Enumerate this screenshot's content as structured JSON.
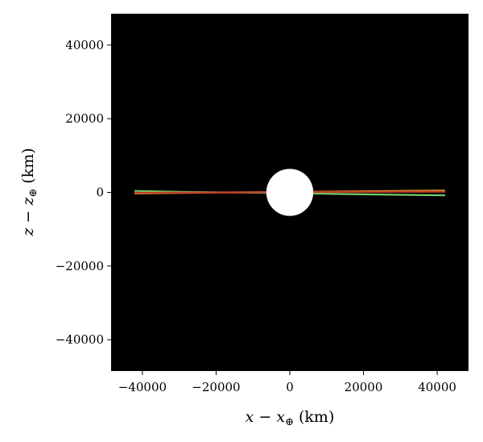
{
  "chart_data": {
    "type": "scatter",
    "title": "",
    "xlabel": {
      "var": "x",
      "minus": " − ",
      "sub_var": "x",
      "sub": "⊕",
      "unit": " (km)"
    },
    "ylabel": {
      "var": "z",
      "minus": " − ",
      "sub_var": "z",
      "sub": "⊕",
      "unit": " (km)"
    },
    "xlim": [
      -48500,
      48500
    ],
    "ylim": [
      -48500,
      48500
    ],
    "xticks": [
      -40000,
      -20000,
      0,
      20000,
      40000
    ],
    "yticks": [
      -40000,
      -20000,
      0,
      20000,
      40000
    ],
    "xtick_labels": [
      "−40000",
      "−20000",
      "0",
      "20000",
      "40000"
    ],
    "ytick_labels": [
      "−40000",
      "−20000",
      "0",
      "20000",
      "40000"
    ],
    "background_color": "#000000",
    "earth": {
      "x": 0,
      "z": 0,
      "radius_km": 6371,
      "color": "#ffffff"
    },
    "series": [
      {
        "color": "#6fd16a",
        "x": [
          -42164,
          -30000,
          -15000,
          0,
          15000,
          30000,
          42164
        ],
        "z": [
          400,
          150,
          -50,
          -200,
          -450,
          -650,
          -800
        ]
      },
      {
        "color": "#e0a020",
        "x": [
          -42164,
          -30000,
          -15000,
          0,
          15000,
          30000,
          42164
        ],
        "z": [
          -300,
          -150,
          0,
          100,
          250,
          400,
          500
        ]
      },
      {
        "color": "#c0392b",
        "x": [
          -42164,
          -30000,
          -15000,
          0,
          15000,
          30000,
          42164
        ],
        "z": [
          -100,
          -50,
          0,
          50,
          100,
          150,
          200
        ]
      }
    ],
    "grid": false,
    "legend": "none"
  }
}
